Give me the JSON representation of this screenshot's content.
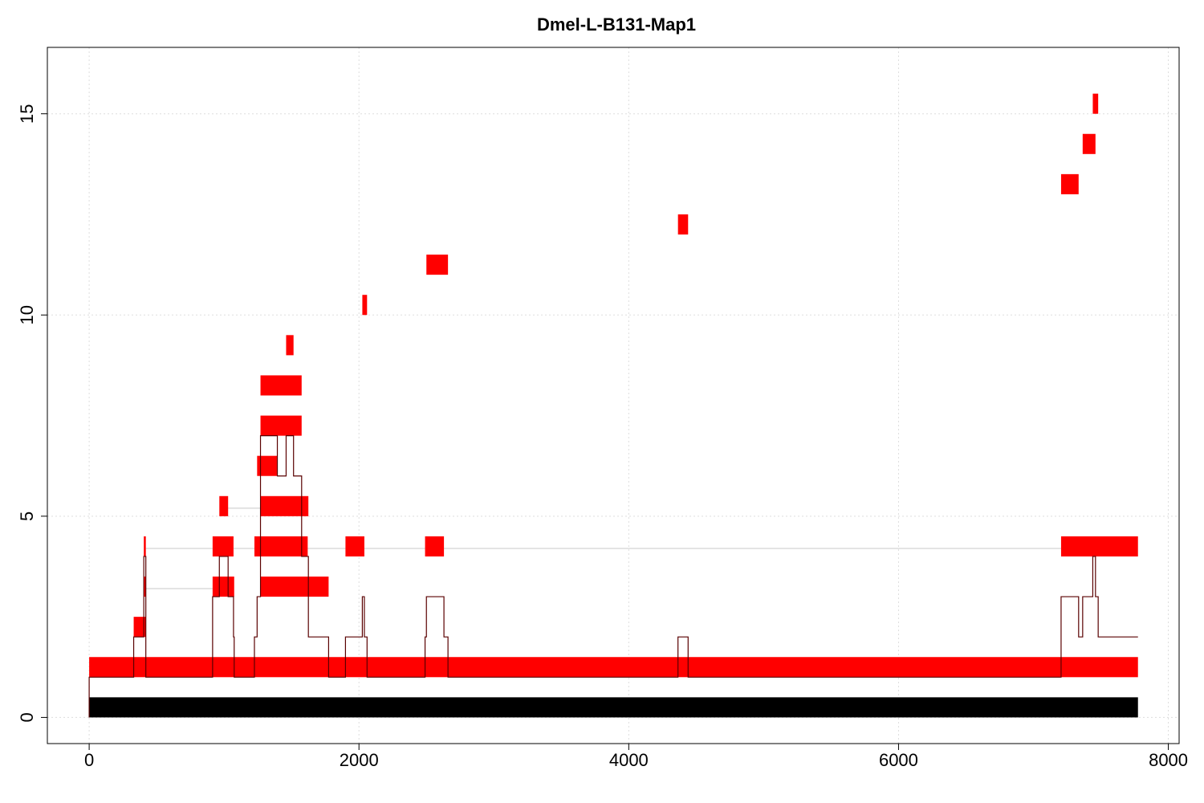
{
  "chart_data": {
    "type": "bar",
    "title": "Dmel-L-B131-Map1",
    "xlabel": "",
    "ylabel": "",
    "xlim": [
      -310,
      8080
    ],
    "ylim": [
      -0.65,
      16.65
    ],
    "xticks": [
      0,
      2000,
      4000,
      6000,
      8000
    ],
    "yticks": [
      0,
      5,
      10,
      15
    ],
    "grid": true,
    "colors": {
      "reference_bar": "#000000",
      "segments": "#ff0000",
      "coverage_line": "#5a0000",
      "connector": "#c8c8c8",
      "grid": "#dddddd"
    },
    "reference_bar": {
      "x0": 0,
      "x1": 7775,
      "y0": 0,
      "y1": 0.5
    },
    "segments": [
      {
        "x0": 0,
        "x1": 7775,
        "y0": 1,
        "y1": 1.5
      },
      {
        "x0": 330,
        "x1": 420,
        "y0": 2,
        "y1": 2.5
      },
      {
        "x0": 405,
        "x1": 420,
        "y0": 3,
        "y1": 3.5
      },
      {
        "x0": 405,
        "x1": 420,
        "y0": 4,
        "y1": 4.5
      },
      {
        "x0": 915,
        "x1": 1075,
        "y0": 3,
        "y1": 3.5
      },
      {
        "x0": 915,
        "x1": 1070,
        "y0": 4,
        "y1": 4.5
      },
      {
        "x0": 965,
        "x1": 1030,
        "y0": 5,
        "y1": 5.5
      },
      {
        "x0": 1270,
        "x1": 1775,
        "y0": 3,
        "y1": 3.5
      },
      {
        "x0": 1225,
        "x1": 1620,
        "y0": 4,
        "y1": 4.5
      },
      {
        "x0": 1270,
        "x1": 1625,
        "y0": 5,
        "y1": 5.5
      },
      {
        "x0": 1245,
        "x1": 1395,
        "y0": 6,
        "y1": 6.5
      },
      {
        "x0": 1270,
        "x1": 1575,
        "y0": 7,
        "y1": 7.5
      },
      {
        "x0": 1270,
        "x1": 1575,
        "y0": 8,
        "y1": 8.5
      },
      {
        "x0": 1460,
        "x1": 1515,
        "y0": 9,
        "y1": 9.5
      },
      {
        "x0": 1900,
        "x1": 2040,
        "y0": 4,
        "y1": 4.5
      },
      {
        "x0": 2025,
        "x1": 2060,
        "y0": 10,
        "y1": 10.5
      },
      {
        "x0": 2490,
        "x1": 2630,
        "y0": 4,
        "y1": 4.5
      },
      {
        "x0": 2500,
        "x1": 2660,
        "y0": 11,
        "y1": 11.5
      },
      {
        "x0": 4365,
        "x1": 4440,
        "y0": 12,
        "y1": 12.5
      },
      {
        "x0": 7205,
        "x1": 7775,
        "y0": 4,
        "y1": 4.5
      },
      {
        "x0": 7205,
        "x1": 7335,
        "y0": 13,
        "y1": 13.5
      },
      {
        "x0": 7365,
        "x1": 7460,
        "y0": 14,
        "y1": 14.5
      },
      {
        "x0": 7440,
        "x1": 7480,
        "y0": 15,
        "y1": 15.5
      }
    ],
    "connectors": [
      {
        "y": 3.2,
        "x0": 420,
        "x1": 915
      },
      {
        "y": 4.2,
        "x0": 420,
        "x1": 915
      },
      {
        "y": 4.2,
        "x0": 1070,
        "x1": 1225
      },
      {
        "y": 5.2,
        "x0": 1030,
        "x1": 1270
      },
      {
        "y": 4.2,
        "x0": 1620,
        "x1": 1900
      },
      {
        "y": 4.2,
        "x0": 2040,
        "x1": 2490
      },
      {
        "y": 4.2,
        "x0": 2630,
        "x1": 7205
      }
    ],
    "coverage": [
      [
        0,
        1
      ],
      [
        330,
        2
      ],
      [
        405,
        4
      ],
      [
        420,
        1
      ],
      [
        915,
        3
      ],
      [
        965,
        4
      ],
      [
        1030,
        3
      ],
      [
        1070,
        2
      ],
      [
        1075,
        1
      ],
      [
        1225,
        2
      ],
      [
        1245,
        3
      ],
      [
        1270,
        7
      ],
      [
        1395,
        6
      ],
      [
        1460,
        7
      ],
      [
        1515,
        6
      ],
      [
        1575,
        4
      ],
      [
        1625,
        2
      ],
      [
        1775,
        1
      ],
      [
        1900,
        2
      ],
      [
        2025,
        3
      ],
      [
        2040,
        2
      ],
      [
        2060,
        1
      ],
      [
        2490,
        2
      ],
      [
        2500,
        3
      ],
      [
        2630,
        2
      ],
      [
        2660,
        1
      ],
      [
        4365,
        2
      ],
      [
        4440,
        1
      ],
      [
        7205,
        3
      ],
      [
        7335,
        2
      ],
      [
        7365,
        3
      ],
      [
        7440,
        4
      ],
      [
        7460,
        3
      ],
      [
        7480,
        2
      ],
      [
        7775,
        2
      ]
    ]
  }
}
